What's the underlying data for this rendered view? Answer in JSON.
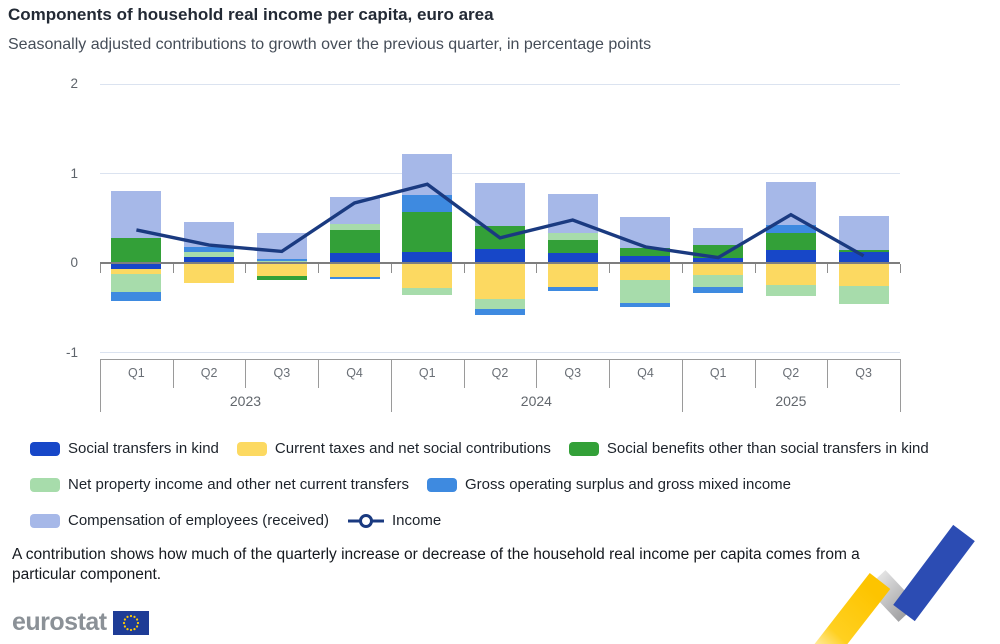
{
  "header": {
    "title": "Components of household real income per capita, euro area",
    "subtitle": "Seasonally adjusted contributions to growth over the previous quarter, in percentage points"
  },
  "chart_data": {
    "type": "bar",
    "subtype": "stacked-bars-with-line",
    "title": "Components of household real income per capita, euro area",
    "subtitle": "Seasonally adjusted contributions to growth over the previous quarter, in percentage points",
    "xlabel": "",
    "ylabel": "",
    "units": "percentage points",
    "ylim": [
      -1,
      2
    ],
    "yticks": [
      2,
      1,
      0,
      -1
    ],
    "grid": "horizontal",
    "legend_position": "bottom",
    "categories": [
      "Q1",
      "Q2",
      "Q3",
      "Q4",
      "Q1",
      "Q2",
      "Q3",
      "Q4",
      "Q1",
      "Q2",
      "Q3"
    ],
    "year_groups": [
      {
        "label": "2023",
        "span": 4
      },
      {
        "label": "2024",
        "span": 4
      },
      {
        "label": "2025",
        "span": 3
      }
    ],
    "series": [
      {
        "name": "Social transfers in kind",
        "color": "#1747c8",
        "values": [
          -0.07,
          0.07,
          0.01,
          0.11,
          0.12,
          0.16,
          0.11,
          0.08,
          0.06,
          0.15,
          0.12
        ]
      },
      {
        "name": "Current taxes and net social contributions",
        "color": "#fcd961",
        "values": [
          -0.05,
          -0.22,
          -0.15,
          -0.16,
          -0.28,
          -0.4,
          -0.27,
          -0.19,
          -0.13,
          -0.25,
          -0.26
        ]
      },
      {
        "name": "Social benefits other than social transfers in kind",
        "color": "#33a038",
        "values": [
          0.28,
          0.0,
          -0.04,
          0.26,
          0.45,
          0.25,
          0.15,
          0.09,
          0.14,
          0.18,
          0.03
        ]
      },
      {
        "name": "Net property income and other net current transfers",
        "color": "#a7dcab",
        "values": [
          -0.2,
          0.05,
          0.01,
          0.07,
          -0.08,
          -0.11,
          0.07,
          -0.26,
          -0.14,
          -0.12,
          -0.2
        ]
      },
      {
        "name": "Gross operating surplus and gross mixed income",
        "color": "#3e8ae0",
        "values": [
          -0.1,
          0.06,
          0.02,
          -0.02,
          0.19,
          -0.07,
          -0.04,
          -0.04,
          -0.06,
          0.1,
          0.0
        ]
      },
      {
        "name": "Compensation of employees (received)",
        "color": "#a6b8e8",
        "values": [
          0.52,
          0.28,
          0.29,
          0.3,
          0.46,
          0.48,
          0.44,
          0.34,
          0.19,
          0.48,
          0.38
        ]
      }
    ],
    "line_series": {
      "name": "Income",
      "color": "#1a3a80",
      "values": [
        0.37,
        0.2,
        0.13,
        0.67,
        0.88,
        0.28,
        0.48,
        0.18,
        0.06,
        0.54,
        0.08
      ]
    }
  },
  "footer": {
    "note": "A contribution shows how much of the quarterly increase or decrease of the household real income per capita comes from a particular component."
  },
  "branding": {
    "logo_text": "eurostat",
    "flag_color": "#1e3c96",
    "star_color": "#ffcc00",
    "ribbon_yellow": "#fdc400",
    "ribbon_gray": "#a8a8a8",
    "ribbon_blue": "#2c4cb3"
  }
}
